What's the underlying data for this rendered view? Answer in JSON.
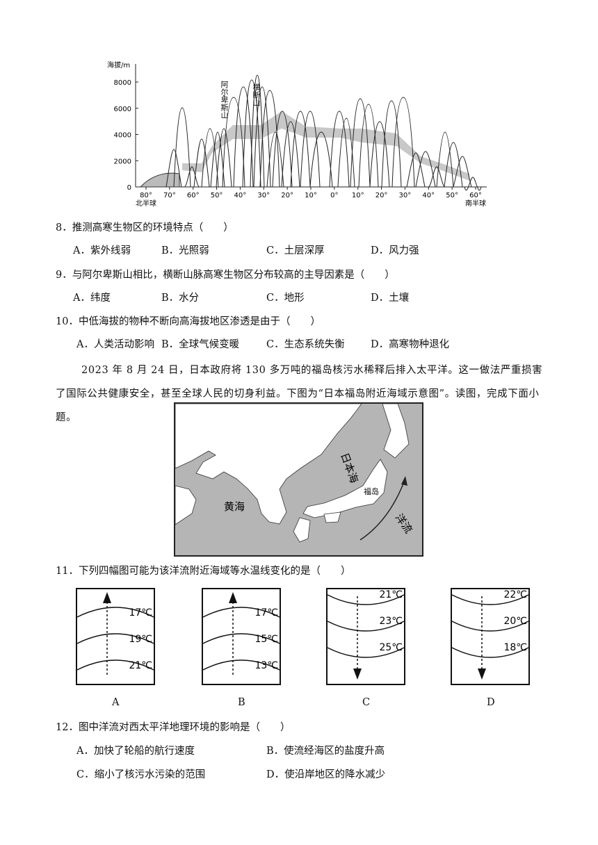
{
  "figure1": {
    "y_axis_label": "海拔/m",
    "y_ticks": [
      0,
      2000,
      4000,
      6000,
      8000
    ],
    "x_ticks": [
      "80°",
      "70°",
      "60°",
      "50°",
      "40°",
      "30°",
      "20°",
      "10°",
      "0°",
      "10°",
      "20°",
      "30°",
      "40°",
      "50°",
      "60°"
    ],
    "left_label": "北半球",
    "right_label": "南半球",
    "mountain_labels": [
      "阿尔卑斯山",
      "横断山"
    ]
  },
  "questions": [
    {
      "stem": "8．推测高寒生物区的环境特点（　　）",
      "options": [
        "A．紫外线弱",
        "B．光照弱",
        "C．土层深厚",
        "D．风力强"
      ]
    },
    {
      "stem": "9．与阿尔卑斯山相比，横断山脉高寒生物区分布较高的主导因素是（　　）",
      "options": [
        "A．纬度",
        "B．水分",
        "C．地形",
        "D．土壤"
      ]
    },
    {
      "stem": "10．中低海拔的物种不断向高海拔地区渗透是由于（　　）",
      "options": [
        "A．人类活动影响",
        "B．全球气候变暖",
        "C．生态系统失衡",
        "D．高寒物种退化"
      ]
    }
  ],
  "passage": "2023 年 8 月 24 日，日本政府将 130 多万吨的福岛核污水稀释后排入太平洋。这一做法严重损害了国际公共健康安全，甚至全球人民的切身利益。下图为“日本福岛附近海域示意图”。读图，完成下面小题。",
  "map": {
    "sea_japan": "日本海",
    "yellow_sea": "黄海",
    "fukushima": "福岛",
    "current": "洋流"
  },
  "question11": {
    "stem": "11．下列四幅图可能为该洋流附近海域等水温线变化的是（　　）",
    "panels": [
      {
        "label": "A",
        "temps": [
          "17℃",
          "19℃",
          "21℃"
        ],
        "arrow": "up"
      },
      {
        "label": "B",
        "temps": [
          "17℃",
          "15℃",
          "13℃"
        ],
        "arrow": "up"
      },
      {
        "label": "C",
        "temps": [
          "21℃",
          "23℃",
          "25℃"
        ],
        "arrow": "down"
      },
      {
        "label": "D",
        "temps": [
          "22℃",
          "20℃",
          "18℃"
        ],
        "arrow": "down"
      }
    ]
  },
  "question12": {
    "stem": "12．图中洋流对西太平洋地理环境的影响是（　　）",
    "options": [
      "A．加快了轮船的航行速度",
      "B．使流经海区的盐度升高",
      "C．缩小了核污水污染的范围",
      "D．使沿岸地区的降水减少"
    ]
  }
}
